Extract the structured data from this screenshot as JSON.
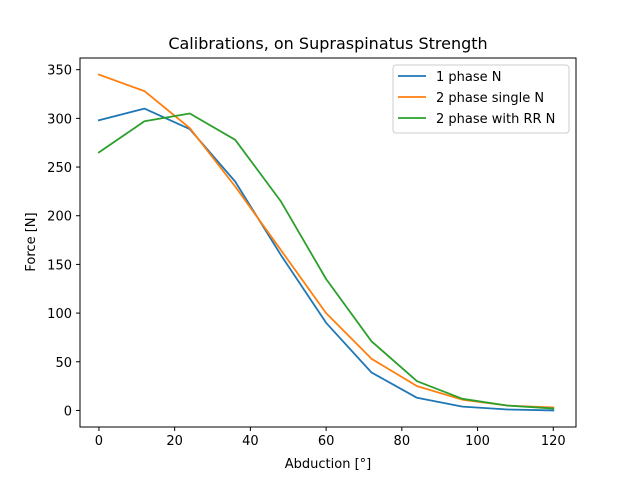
{
  "chart_data": {
    "type": "line",
    "title": "Calibrations, on Supraspinatus Strength",
    "xlabel": "Abduction [°]",
    "ylabel": "Force [N]",
    "xlim": [
      -5,
      126
    ],
    "ylim": [
      -17,
      362
    ],
    "xticks": [
      0,
      20,
      40,
      60,
      80,
      100,
      120
    ],
    "yticks": [
      0,
      50,
      100,
      150,
      200,
      250,
      300,
      350
    ],
    "x": [
      0,
      12,
      24,
      36,
      48,
      60,
      72,
      84,
      96,
      108,
      120
    ],
    "series": [
      {
        "name": "1 phase N",
        "color": "#1f77b4",
        "values": [
          298,
          310,
          289,
          235,
          160,
          90,
          39,
          13,
          4,
          1,
          0
        ]
      },
      {
        "name": "2 phase single N",
        "color": "#ff7f0e",
        "values": [
          345,
          328,
          290,
          230,
          165,
          100,
          53,
          25,
          11,
          5,
          3
        ]
      },
      {
        "name": "2 phase with RR N",
        "color": "#2ca02c",
        "values": [
          265,
          297,
          305,
          278,
          215,
          135,
          71,
          30,
          12,
          5,
          2
        ]
      }
    ],
    "grid": false,
    "legend": "top-right"
  }
}
